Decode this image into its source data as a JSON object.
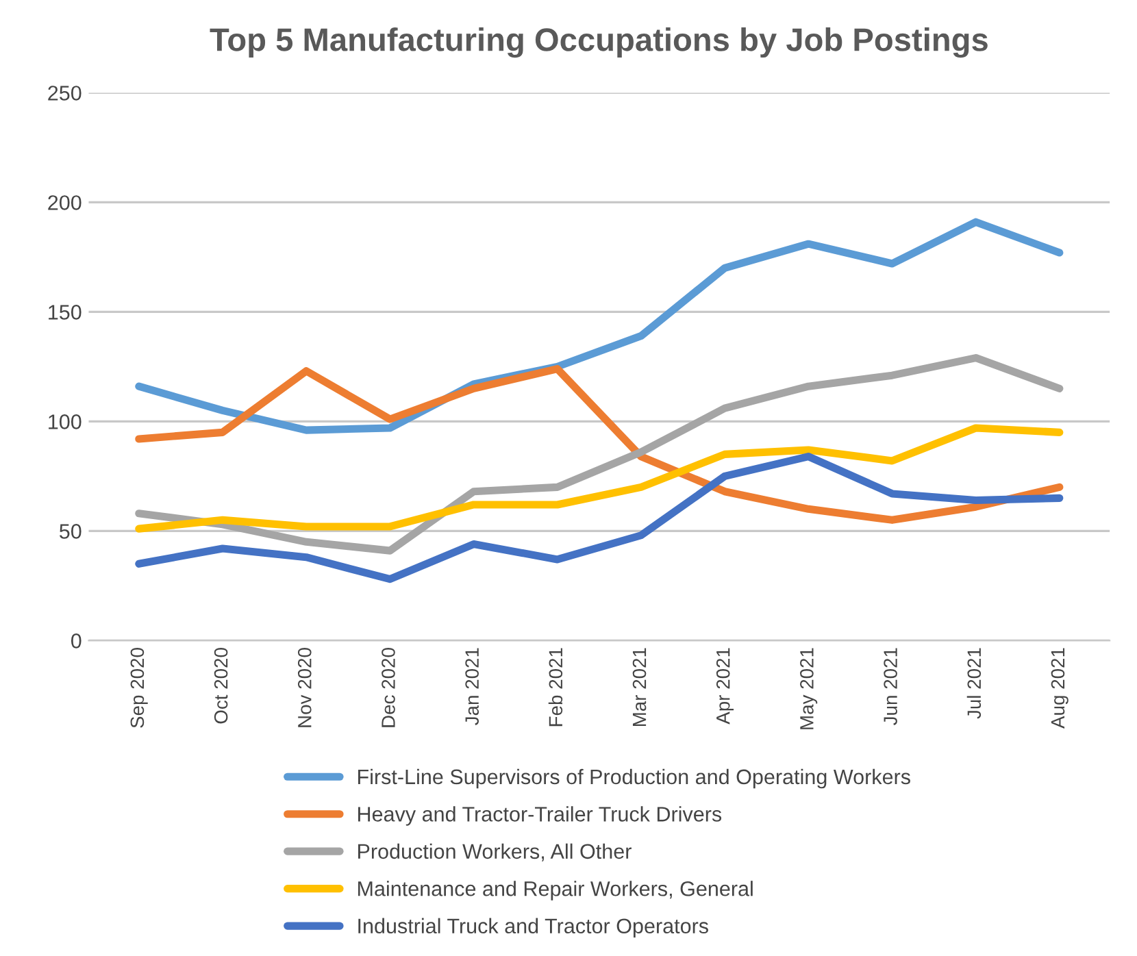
{
  "chart_data": {
    "type": "line",
    "title": "Top 5 Manufacturing Occupations by Job Postings",
    "categories": [
      "Sep 2020",
      "Oct 2020",
      "Nov 2020",
      "Dec 2020",
      "Jan 2021",
      "Feb 2021",
      "Mar 2021",
      "Apr 2021",
      "May 2021",
      "Jun 2021",
      "Jul 2021",
      "Aug 2021"
    ],
    "series": [
      {
        "name": "First-Line Supervisors of Production and Operating Workers",
        "color": "#5b9bd5",
        "values": [
          116,
          105,
          96,
          97,
          117,
          125,
          139,
          170,
          181,
          172,
          191,
          177
        ]
      },
      {
        "name": "Heavy and Tractor-Trailer Truck Drivers",
        "color": "#ed7d31",
        "values": [
          92,
          95,
          123,
          101,
          115,
          124,
          84,
          68,
          60,
          55,
          61,
          70
        ]
      },
      {
        "name": "Production Workers, All Other",
        "color": "#a5a5a5",
        "values": [
          58,
          53,
          45,
          41,
          68,
          70,
          86,
          106,
          116,
          121,
          129,
          115
        ]
      },
      {
        "name": "Maintenance and Repair Workers, General",
        "color": "#ffc000",
        "values": [
          51,
          55,
          52,
          52,
          62,
          62,
          70,
          85,
          87,
          82,
          97,
          95
        ]
      },
      {
        "name": "Industrial Truck and Tractor Operators",
        "color": "#4472c4",
        "values": [
          35,
          42,
          38,
          28,
          44,
          37,
          48,
          75,
          84,
          67,
          64,
          65
        ]
      }
    ],
    "ylim": [
      0,
      250
    ],
    "yticks": [
      0,
      50,
      100,
      150,
      200,
      250
    ],
    "grid": "y",
    "legend": "bottom",
    "line_style": "solid",
    "marker": "none"
  }
}
